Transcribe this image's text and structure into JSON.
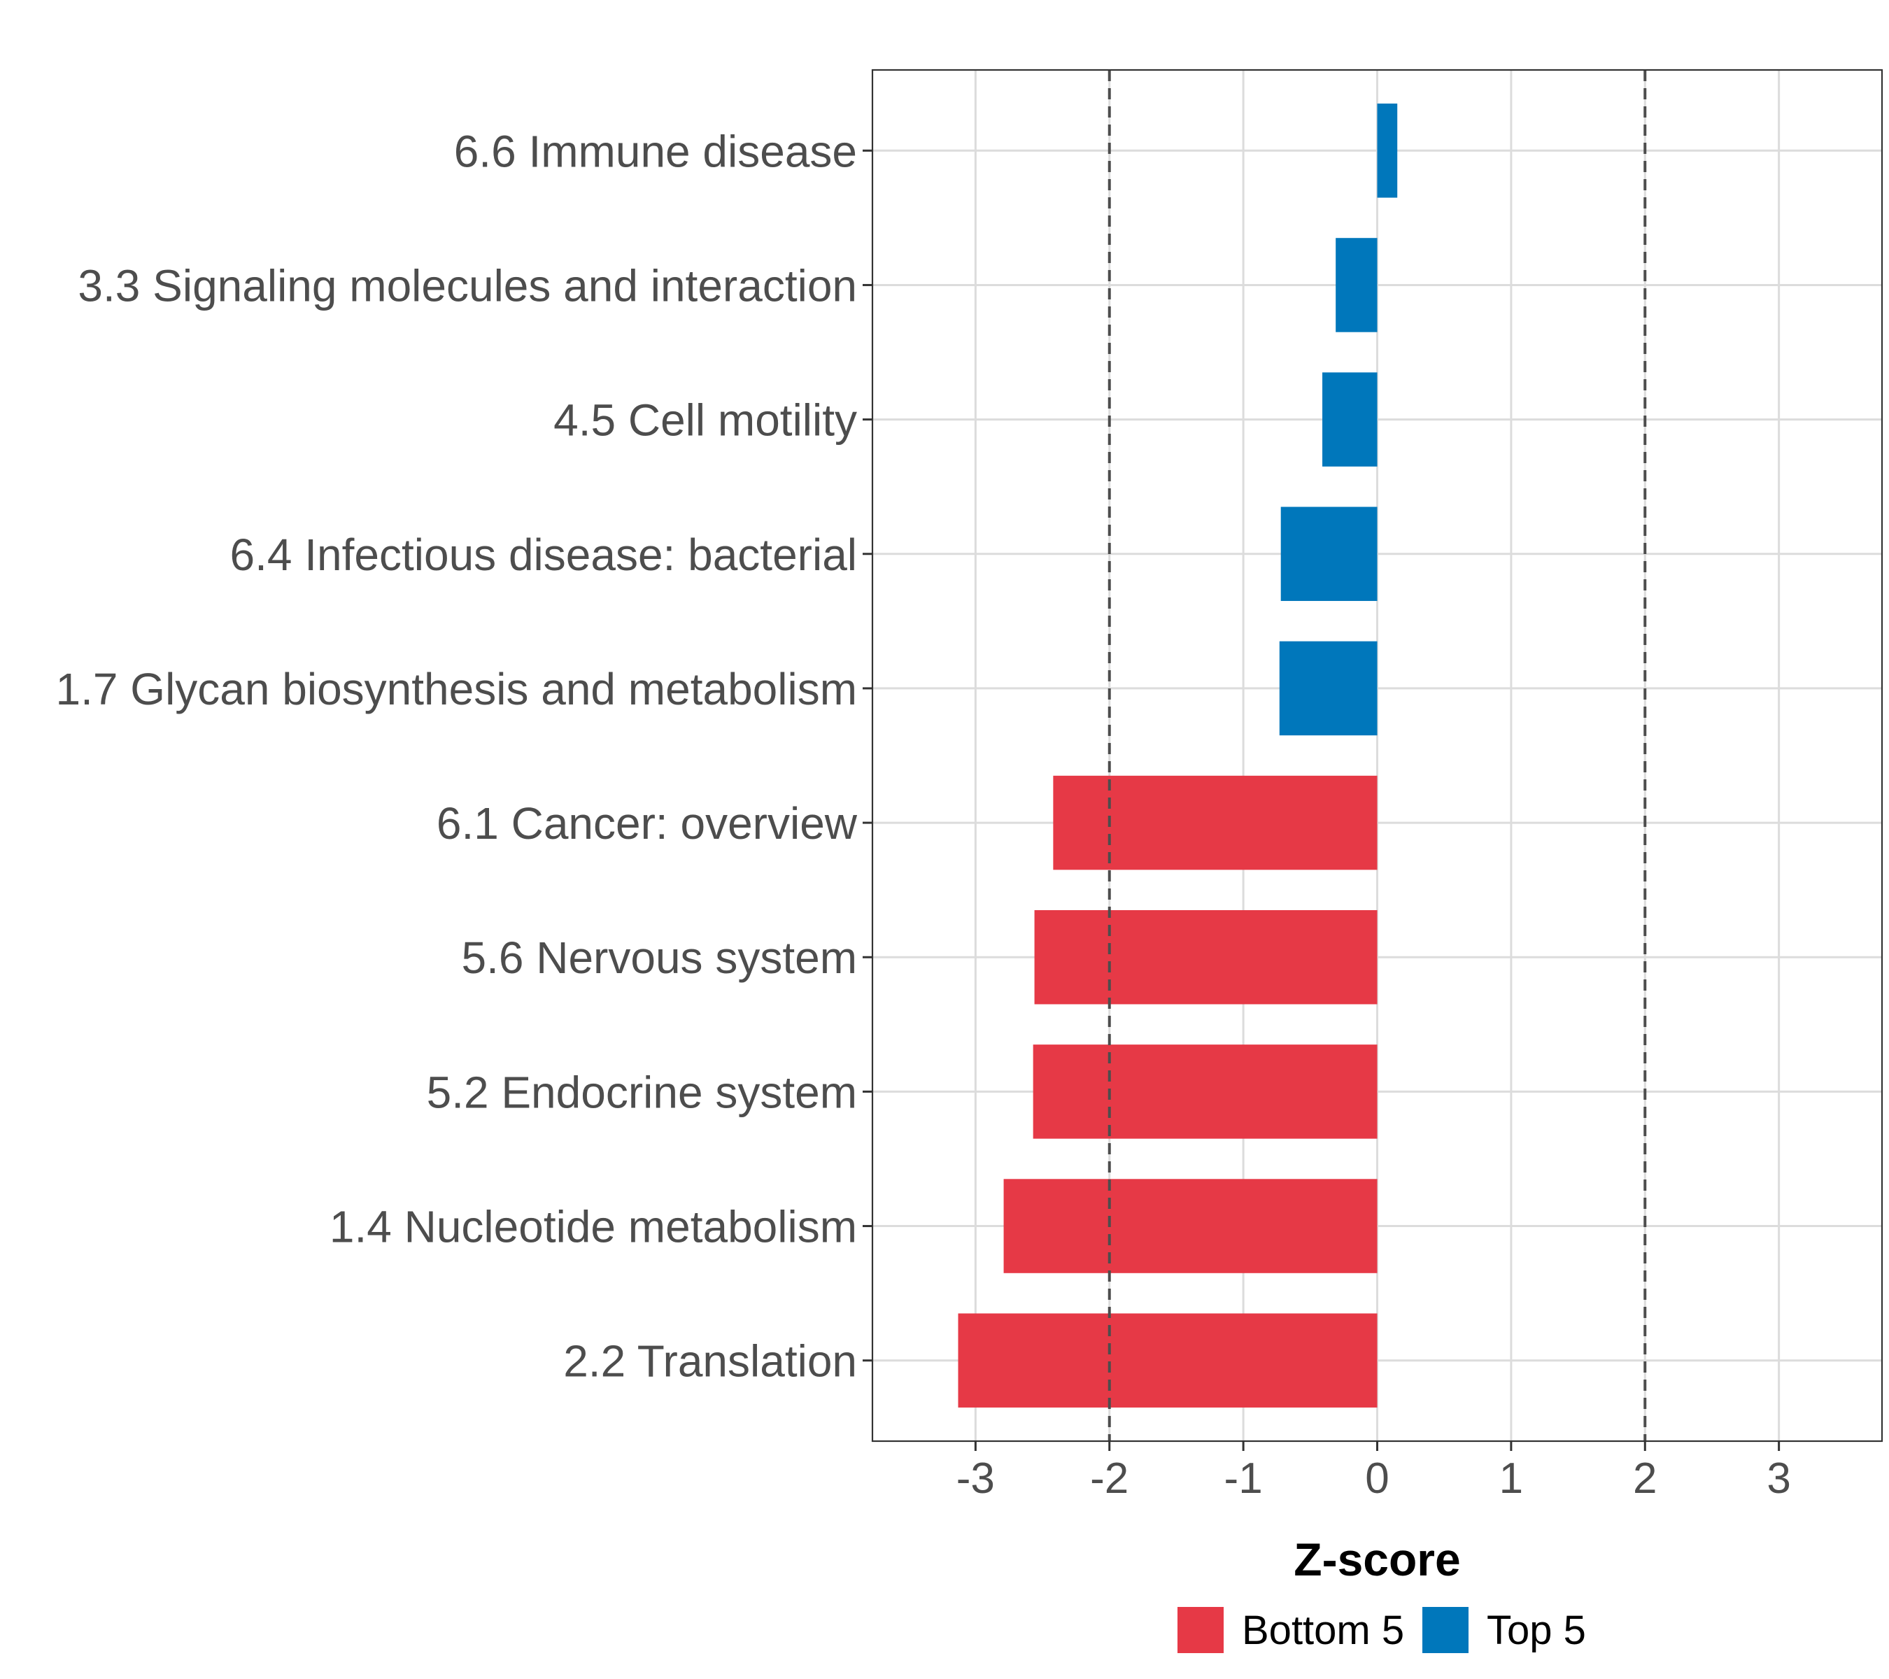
{
  "chart_data": {
    "type": "bar",
    "orientation": "horizontal",
    "categories": [
      "6.6 Immune disease",
      "3.3 Signaling molecules and interaction",
      "4.5 Cell motility",
      "6.4 Infectious disease: bacterial",
      "1.7 Glycan biosynthesis and metabolism",
      "6.1 Cancer: overview",
      "5.6 Nervous system",
      "5.2 Endocrine system",
      "1.4 Nucleotide metabolism",
      "2.2 Translation"
    ],
    "values": [
      0.15,
      -0.31,
      -0.41,
      -0.72,
      -0.73,
      -2.42,
      -2.56,
      -2.57,
      -2.79,
      -3.13
    ],
    "groups": [
      "Top 5",
      "Top 5",
      "Top 5",
      "Top 5",
      "Top 5",
      "Bottom 5",
      "Bottom 5",
      "Bottom 5",
      "Bottom 5",
      "Bottom 5"
    ],
    "xlabel": "Z-score",
    "ylabel": "",
    "xlim": [
      -3.77,
      3.77
    ],
    "xticks": [
      -3,
      -2,
      -1,
      0,
      1,
      2,
      3
    ],
    "xtick_labels": [
      "-3",
      "-2",
      "-1",
      "0",
      "1",
      "2",
      "3"
    ],
    "reference_lines": [
      -2,
      2
    ],
    "grid": true,
    "legend": {
      "position": "bottom",
      "items": [
        {
          "label": "Bottom 5",
          "color": "#e63946"
        },
        {
          "label": "Top 5",
          "color": "#0077bb"
        }
      ]
    }
  },
  "colors": {
    "bottom": "#e63946",
    "top": "#0077bb",
    "grid": "#dcdcdc",
    "axis_text": "#4d4d4d",
    "reference_line": "#4d4d4d"
  }
}
